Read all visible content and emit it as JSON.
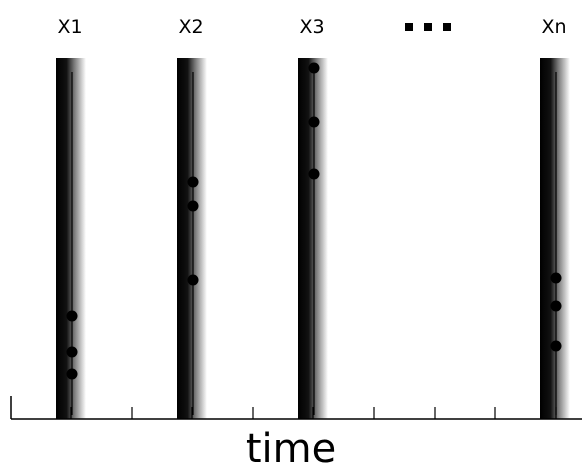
{
  "columns": [
    {
      "label": "X1",
      "events": [
        316,
        352,
        374
      ]
    },
    {
      "label": "X2",
      "events": [
        182,
        206,
        280
      ]
    },
    {
      "label": "X3",
      "events": [
        68,
        122,
        174
      ]
    },
    {
      "label": "Xn",
      "events": [
        278,
        306,
        346
      ]
    }
  ],
  "ellipsis": "...",
  "axis": {
    "title": "time"
  },
  "colors": {
    "ink": "#000000",
    "fade": "#ffffff"
  }
}
